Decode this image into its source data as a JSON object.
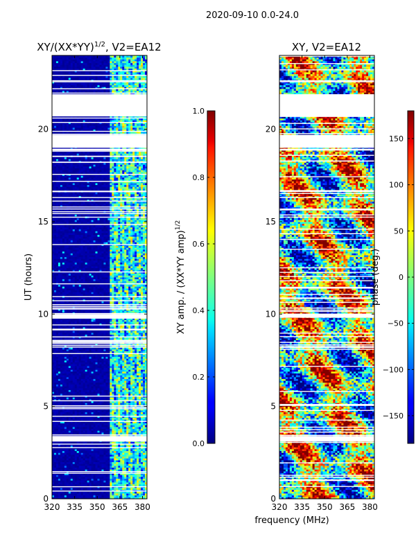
{
  "figure": {
    "suptitle": "2020-09-10 0.0-24.0",
    "xlabel": "frequency (MHz)"
  },
  "chart_data": [
    {
      "type": "heatmap",
      "title": "XY/(XX*YY)^1/2, V2=EA12",
      "title_main": "XY/(XX*YY)",
      "title_exp": "1/2",
      "title_tail": ", V2=EA12",
      "xlabel": "frequency (MHz)",
      "ylabel": "UT (hours)",
      "xlim": [
        320,
        383
      ],
      "ylim": [
        0,
        24
      ],
      "x_ticks": [
        320,
        335,
        350,
        365,
        380
      ],
      "y_ticks": [
        0,
        5,
        10,
        15,
        20
      ],
      "colorbar": {
        "label": "XY amp. / (XX*YY amp)^1/2",
        "label_main": "XY amp. / (XX*YY amp)",
        "label_exp": "1/2",
        "range": [
          0.0,
          1.0
        ],
        "ticks": [
          "0.0",
          "0.2",
          "0.4",
          "0.6",
          "0.8",
          "1.0"
        ],
        "tick_values": [
          0.0,
          0.2,
          0.4,
          0.6,
          0.8,
          1.0
        ],
        "colormap": "jet"
      },
      "flagged_ut_ranges_hours": [
        [
          20.7,
          21.9
        ],
        [
          19.0,
          19.7
        ],
        [
          3.1,
          3.4
        ],
        [
          9.8,
          10.0
        ],
        [
          18.85,
          18.95
        ]
      ],
      "high_amplitude_band_mhz": [
        359,
        383
      ]
    },
    {
      "type": "heatmap",
      "title": "XY, V2=EA12",
      "xlabel": "frequency (MHz)",
      "ylabel": "",
      "xlim": [
        320,
        383
      ],
      "ylim": [
        0,
        24
      ],
      "x_ticks": [
        320,
        335,
        350,
        365,
        380
      ],
      "y_ticks": [
        0,
        5,
        10,
        15,
        20
      ],
      "colorbar": {
        "label": "phase (deg.)",
        "range": [
          -180,
          180
        ],
        "ticks": [
          "−150",
          "−100",
          "−50",
          "0",
          "50",
          "100",
          "150"
        ],
        "tick_values": [
          -150,
          -100,
          -50,
          0,
          50,
          100,
          150
        ],
        "colormap": "jet"
      },
      "flagged_ut_ranges_hours": [
        [
          20.7,
          21.9
        ],
        [
          19.0,
          19.7
        ],
        [
          3.1,
          3.4
        ],
        [
          9.8,
          10.0
        ],
        [
          18.85,
          18.95
        ]
      ]
    }
  ],
  "colors": {
    "jet_low": "#00007f",
    "jet_mid": "#7fff7f",
    "jet_high": "#7f0000",
    "axis": "#000000"
  }
}
